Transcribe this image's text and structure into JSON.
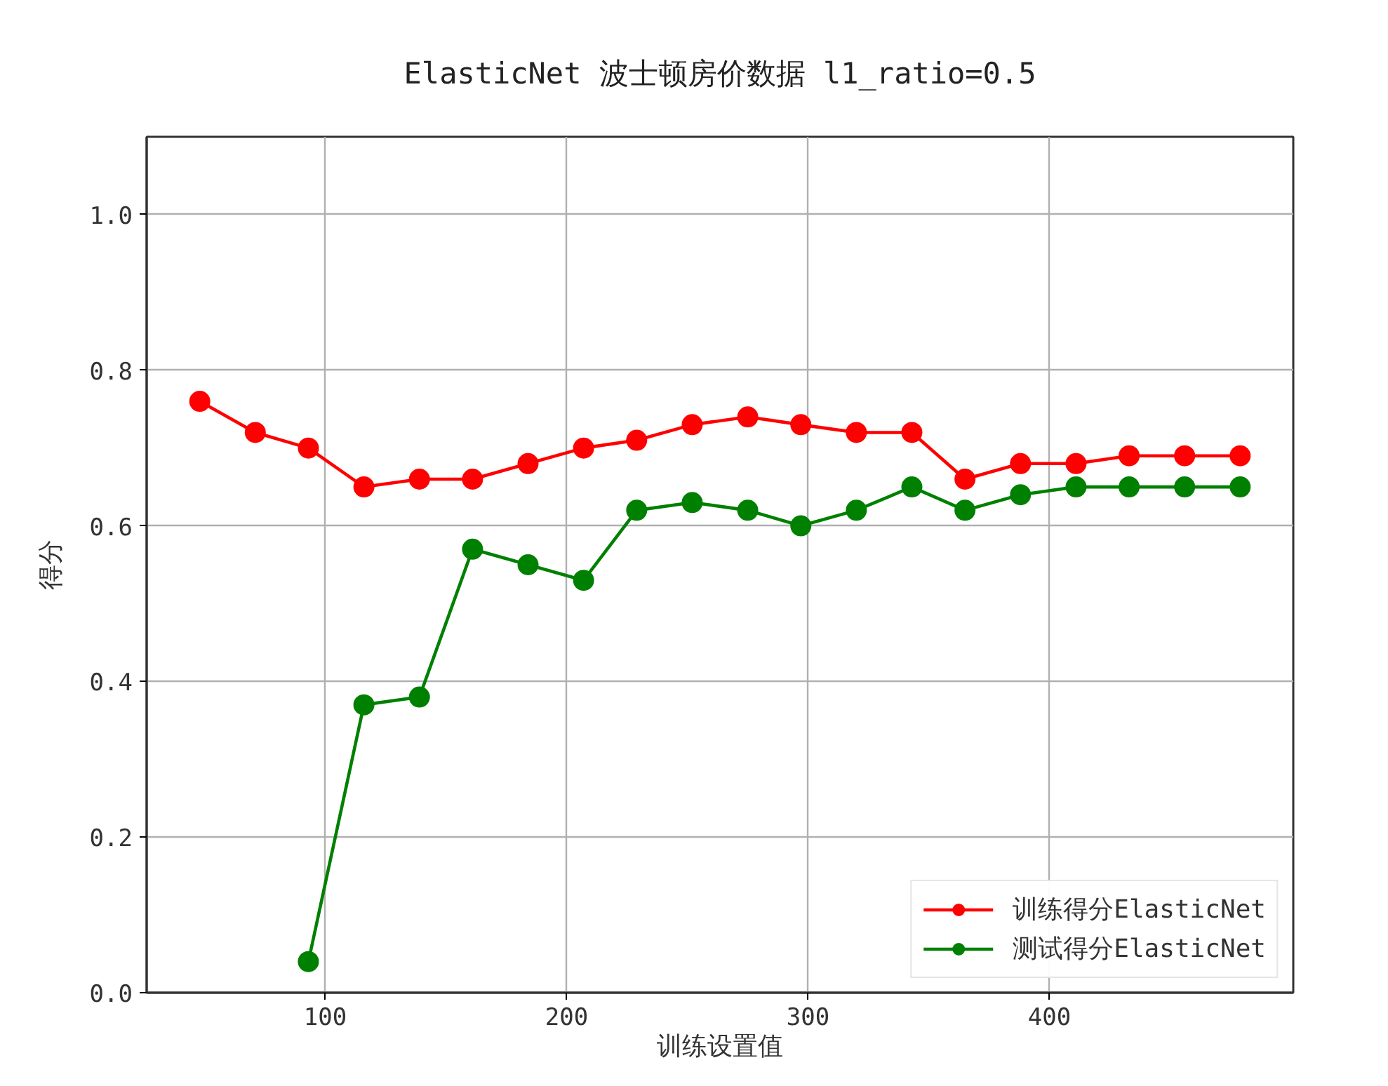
{
  "chart_data": {
    "type": "line",
    "title": "ElasticNet 波士顿房价数据 l1_ratio=0.5",
    "xlabel": "训练设置值",
    "ylabel": "得分",
    "x": [
      48,
      71,
      93,
      116,
      139,
      161,
      184,
      207,
      229,
      252,
      275,
      297,
      320,
      343,
      365,
      388,
      411,
      433,
      456,
      479
    ],
    "series": [
      {
        "name": "训练得分ElasticNet",
        "color": "#ff0000",
        "values": [
          0.76,
          0.72,
          0.7,
          0.65,
          0.66,
          0.66,
          0.68,
          0.7,
          0.71,
          0.73,
          0.74,
          0.73,
          0.72,
          0.72,
          0.66,
          0.68,
          0.68,
          0.69,
          0.69,
          0.69
        ]
      },
      {
        "name": "测试得分ElasticNet",
        "color": "#008000",
        "values": [
          null,
          null,
          0.04,
          0.37,
          0.38,
          0.57,
          0.55,
          0.53,
          0.62,
          0.63,
          0.62,
          0.6,
          0.62,
          0.65,
          0.62,
          0.64,
          0.65,
          0.65,
          0.65,
          0.65
        ]
      }
    ],
    "xlim": [
      26,
      501
    ],
    "ylim": [
      0,
      1.1
    ],
    "xticks": [
      100,
      200,
      300,
      400
    ],
    "yticks": [
      {
        "value": 0,
        "label": "0.0"
      },
      0.2,
      0.4,
      0.6,
      0.8,
      {
        "value": 1,
        "label": "1.0"
      }
    ],
    "grid": true,
    "legend": "bottom right",
    "marker": "circle",
    "line_style": "solid"
  }
}
